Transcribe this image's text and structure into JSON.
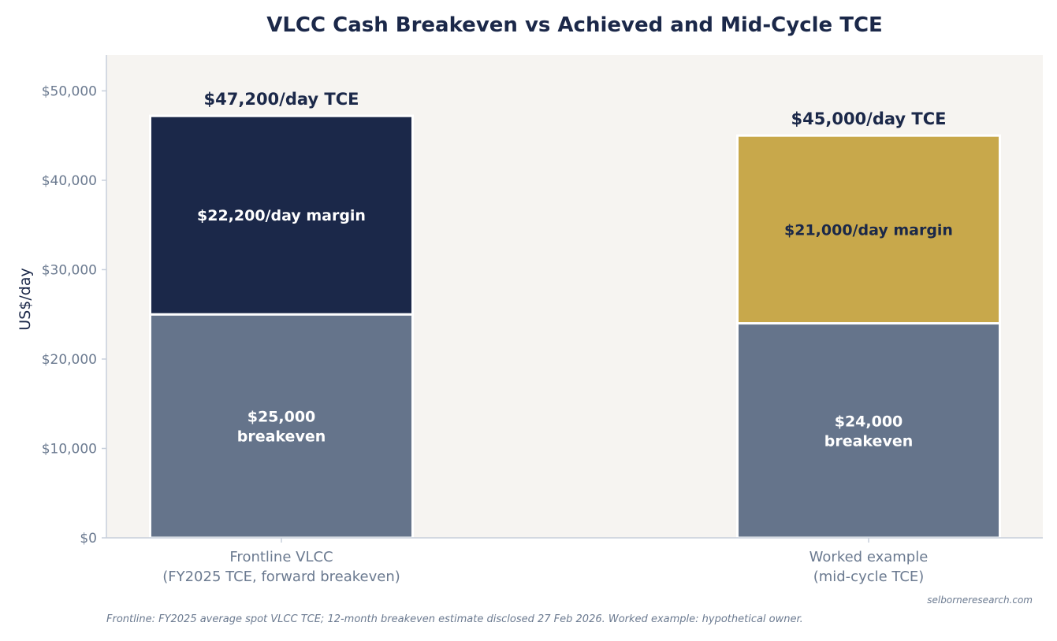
{
  "colors": {
    "navy": "#1b2849",
    "slate": "#65748b",
    "gold": "#c8a84b",
    "plot_bg": "#f6f4f1",
    "axis": "#c7cfdb",
    "tick_text": "#6b7a90",
    "white": "#ffffff"
  },
  "chart_data": {
    "type": "bar",
    "stacked": true,
    "title": "VLCC Cash Breakeven vs Achieved and Mid-Cycle TCE",
    "ylabel": "US$/day",
    "xlabel": "",
    "ylim": [
      0,
      54000
    ],
    "yticks": [
      0,
      10000,
      20000,
      30000,
      40000,
      50000
    ],
    "ytick_labels": [
      "$0",
      "$10,000",
      "$20,000",
      "$30,000",
      "$40,000",
      "$50,000"
    ],
    "grid": false,
    "categories": [
      [
        "Frontline VLCC",
        "(FY2025 TCE, forward breakeven)"
      ],
      [
        "Worked example",
        "(mid-cycle TCE)"
      ]
    ],
    "bars": [
      {
        "segments": [
          {
            "value": 25000,
            "color": "#65748b",
            "label": [
              "$25,000",
              "breakeven"
            ],
            "label_color": "#ffffff"
          },
          {
            "value": 22200,
            "color": "#1b2849",
            "label": [
              "$22,200/day margin"
            ],
            "label_color": "#ffffff"
          }
        ],
        "total": 47200,
        "total_label": "$47,200/day TCE"
      },
      {
        "segments": [
          {
            "value": 24000,
            "color": "#65748b",
            "label": [
              "$24,000",
              "breakeven"
            ],
            "label_color": "#ffffff"
          },
          {
            "value": 21000,
            "color": "#c8a84b",
            "label": [
              "$21,000/day margin"
            ],
            "label_color": "#1b2849"
          }
        ],
        "total": 45000,
        "total_label": "$45,000/day TCE"
      }
    ]
  },
  "footer": {
    "note": "Frontline: FY2025 average spot VLCC TCE; 12-month breakeven estimate disclosed 27 Feb 2026. Worked example: hypothetical owner.",
    "credit": "selborneresearch.com"
  }
}
